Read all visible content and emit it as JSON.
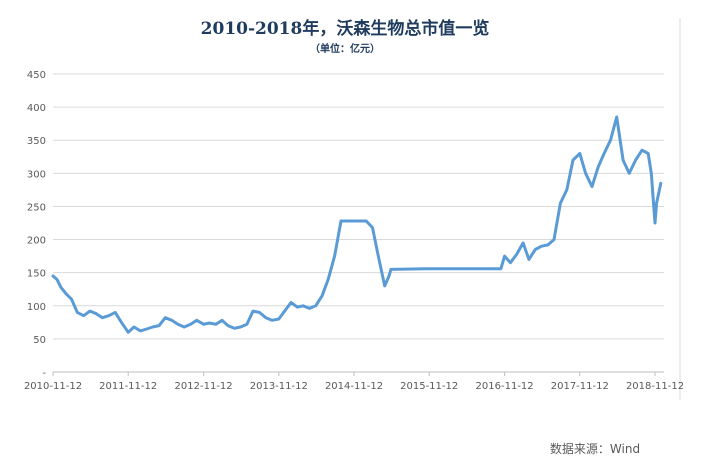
{
  "chart_data": {
    "type": "line",
    "title": "2010-2018年，沃森生物总市值一览",
    "subtitle": "（单位：亿元）",
    "xlabel": "",
    "ylabel": "",
    "ylim": [
      0,
      450
    ],
    "yticks": [
      "-",
      "50",
      "100",
      "150",
      "200",
      "250",
      "300",
      "350",
      "400",
      "450"
    ],
    "xticks": [
      "2010-11-12",
      "2011-11-12",
      "2012-11-12",
      "2013-11-12",
      "2014-11-12",
      "2015-11-12",
      "2016-11-12",
      "2017-11-12",
      "2018-11-12"
    ],
    "grid": true,
    "legend": "none",
    "line_color": "#5b9bd5",
    "series": [
      {
        "x": [
          "2010-11-12",
          "2010-12-01",
          "2010-12-20",
          "2011-01-15",
          "2011-02-10",
          "2011-03-10",
          "2011-04-10",
          "2011-05-10",
          "2011-06-10",
          "2011-07-10",
          "2011-08-10",
          "2011-09-10",
          "2011-10-10",
          "2011-11-12",
          "2011-12-10",
          "2012-01-10",
          "2012-02-10",
          "2012-03-10",
          "2012-04-10",
          "2012-05-10",
          "2012-06-10",
          "2012-07-10",
          "2012-08-10",
          "2012-09-10",
          "2012-10-10",
          "2012-11-12",
          "2012-12-10",
          "2013-01-10",
          "2013-02-10",
          "2013-03-10",
          "2013-04-10",
          "2013-05-10",
          "2013-06-10",
          "2013-07-10",
          "2013-08-10",
          "2013-09-10",
          "2013-10-10",
          "2013-11-12",
          "2013-12-10",
          "2014-01-10",
          "2014-02-10",
          "2014-03-10",
          "2014-04-10",
          "2014-05-10",
          "2014-06-10",
          "2014-07-10",
          "2014-08-10",
          "2014-09-10",
          "2014-10-10",
          "2014-11-12",
          "2014-12-10",
          "2015-01-10",
          "2015-02-10",
          "2015-03-10",
          "2015-04-10",
          "2015-05-01",
          "2015-05-10",
          "2015-10-25",
          "2015-11-05",
          "2015-11-20",
          "2015-12-05",
          "2015-12-20",
          "2016-01-10",
          "2016-01-25",
          "2016-02-10",
          "2016-10-25",
          "2016-11-12",
          "2016-12-10",
          "2017-01-10",
          "2017-02-10",
          "2017-03-10",
          "2017-04-10",
          "2017-05-10",
          "2017-06-10",
          "2017-07-10",
          "2017-08-10",
          "2017-09-10",
          "2017-10-10",
          "2017-11-12",
          "2017-12-10",
          "2018-01-10",
          "2018-02-10",
          "2018-03-10",
          "2018-04-10",
          "2018-05-10",
          "2018-06-10",
          "2018-07-10",
          "2018-08-10",
          "2018-09-10",
          "2018-10-10",
          "2018-10-25",
          "2018-11-12",
          "2018-11-20",
          "2018-12-10"
        ],
        "values": [
          145,
          140,
          128,
          118,
          110,
          90,
          85,
          92,
          88,
          82,
          85,
          90,
          75,
          60,
          68,
          62,
          65,
          68,
          70,
          82,
          78,
          72,
          68,
          72,
          78,
          72,
          74,
          72,
          78,
          70,
          66,
          68,
          72,
          92,
          90,
          82,
          78,
          80,
          92,
          105,
          98,
          100,
          96,
          100,
          115,
          140,
          175,
          228,
          228,
          228,
          228,
          228,
          218,
          175,
          130,
          145,
          155,
          156,
          156,
          156,
          156,
          156,
          156,
          156,
          156,
          156,
          175,
          165,
          178,
          195,
          170,
          185,
          190,
          192,
          200,
          255,
          275,
          320,
          330,
          300,
          280,
          310,
          330,
          350,
          385,
          320,
          300,
          320,
          335,
          330,
          300,
          225,
          255,
          285
        ]
      }
    ]
  },
  "source": "数据来源：Wind"
}
